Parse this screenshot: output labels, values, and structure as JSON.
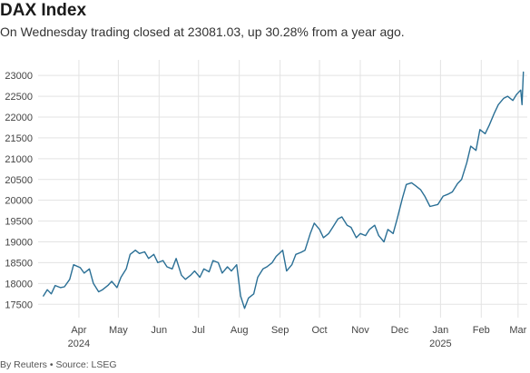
{
  "header": {
    "title": "DAX Index",
    "subtitle": "On Wednesday trading closed at 23081.03, up 30.28% from a year ago."
  },
  "footer": {
    "credit": "By Reuters • Source: LSEG"
  },
  "colors": {
    "line": "#2a6f95",
    "grid": "#e3e3e3",
    "text": "#444444"
  },
  "chart_data": {
    "type": "line",
    "title": "DAX Index",
    "subtitle": "On Wednesday trading closed at 23081.03, up 30.28% from a year ago.",
    "xlabel": "",
    "ylabel": "",
    "ylim": [
      17500,
      23000
    ],
    "y_ticks": [
      17500,
      18000,
      18500,
      19000,
      19500,
      20000,
      20500,
      21000,
      21500,
      22000,
      22500,
      23000
    ],
    "x_ticks": [
      {
        "label": "Apr",
        "sublabel": "2024",
        "date": "2024-04-01"
      },
      {
        "label": "May",
        "sublabel": "",
        "date": "2024-05-01"
      },
      {
        "label": "Jun",
        "sublabel": "",
        "date": "2024-06-01"
      },
      {
        "label": "Jul",
        "sublabel": "",
        "date": "2024-07-01"
      },
      {
        "label": "Aug",
        "sublabel": "",
        "date": "2024-08-01"
      },
      {
        "label": "Sep",
        "sublabel": "",
        "date": "2024-09-01"
      },
      {
        "label": "Oct",
        "sublabel": "",
        "date": "2024-10-01"
      },
      {
        "label": "Nov",
        "sublabel": "",
        "date": "2024-11-01"
      },
      {
        "label": "Dec",
        "sublabel": "",
        "date": "2024-12-01"
      },
      {
        "label": "Jan",
        "sublabel": "2025",
        "date": "2025-01-01"
      },
      {
        "label": "Feb",
        "sublabel": "",
        "date": "2025-02-01"
      },
      {
        "label": "Mar",
        "sublabel": "",
        "date": "2025-03-01"
      }
    ],
    "grid": true,
    "legend": "none",
    "series": [
      {
        "x": [
          "2024-03-05",
          "2024-03-08",
          "2024-03-11",
          "2024-03-14",
          "2024-03-18",
          "2024-03-21",
          "2024-03-25",
          "2024-03-28",
          "2024-04-02",
          "2024-04-05",
          "2024-04-09",
          "2024-04-12",
          "2024-04-16",
          "2024-04-19",
          "2024-04-23",
          "2024-04-26",
          "2024-04-30",
          "2024-05-03",
          "2024-05-07",
          "2024-05-10",
          "2024-05-14",
          "2024-05-17",
          "2024-05-21",
          "2024-05-24",
          "2024-05-28",
          "2024-05-31",
          "2024-06-04",
          "2024-06-07",
          "2024-06-11",
          "2024-06-14",
          "2024-06-18",
          "2024-06-21",
          "2024-06-25",
          "2024-06-28",
          "2024-07-02",
          "2024-07-05",
          "2024-07-09",
          "2024-07-12",
          "2024-07-16",
          "2024-07-19",
          "2024-07-23",
          "2024-07-26",
          "2024-07-30",
          "2024-08-02",
          "2024-08-05",
          "2024-08-08",
          "2024-08-12",
          "2024-08-15",
          "2024-08-19",
          "2024-08-22",
          "2024-08-26",
          "2024-08-29",
          "2024-09-03",
          "2024-09-06",
          "2024-09-10",
          "2024-09-13",
          "2024-09-17",
          "2024-09-20",
          "2024-09-24",
          "2024-09-27",
          "2024-10-01",
          "2024-10-04",
          "2024-10-08",
          "2024-10-11",
          "2024-10-15",
          "2024-10-18",
          "2024-10-22",
          "2024-10-25",
          "2024-10-29",
          "2024-11-01",
          "2024-11-05",
          "2024-11-08",
          "2024-11-12",
          "2024-11-15",
          "2024-11-19",
          "2024-11-22",
          "2024-11-26",
          "2024-11-29",
          "2024-12-03",
          "2024-12-06",
          "2024-12-10",
          "2024-12-13",
          "2024-12-17",
          "2024-12-20",
          "2024-12-24",
          "2024-12-30",
          "2025-01-03",
          "2025-01-07",
          "2025-01-10",
          "2025-01-14",
          "2025-01-17",
          "2025-01-21",
          "2025-01-24",
          "2025-01-28",
          "2025-01-31",
          "2025-02-04",
          "2025-02-07",
          "2025-02-11",
          "2025-02-14",
          "2025-02-18",
          "2025-02-21",
          "2025-02-25",
          "2025-02-28",
          "2025-03-03",
          "2025-03-04",
          "2025-03-05"
        ],
        "y": [
          17700,
          17850,
          17750,
          17950,
          17900,
          17920,
          18100,
          18450,
          18380,
          18250,
          18350,
          18000,
          17800,
          17850,
          17950,
          18050,
          17900,
          18150,
          18350,
          18700,
          18800,
          18720,
          18760,
          18600,
          18700,
          18500,
          18550,
          18400,
          18350,
          18600,
          18200,
          18100,
          18200,
          18300,
          18150,
          18350,
          18280,
          18550,
          18500,
          18250,
          18400,
          18300,
          18450,
          17700,
          17400,
          17650,
          17750,
          18150,
          18350,
          18400,
          18500,
          18650,
          18800,
          18300,
          18450,
          18700,
          18750,
          18800,
          19200,
          19450,
          19300,
          19100,
          19200,
          19350,
          19550,
          19600,
          19400,
          19350,
          19100,
          19200,
          19150,
          19300,
          19400,
          19150,
          19000,
          19300,
          19200,
          19550,
          20050,
          20380,
          20420,
          20350,
          20250,
          20100,
          19850,
          19900,
          20100,
          20150,
          20200,
          20400,
          20500,
          20900,
          21300,
          21200,
          21700,
          21600,
          21800,
          22100,
          22300,
          22450,
          22500,
          22400,
          22550,
          22650,
          22300,
          23081
        ]
      }
    ]
  }
}
